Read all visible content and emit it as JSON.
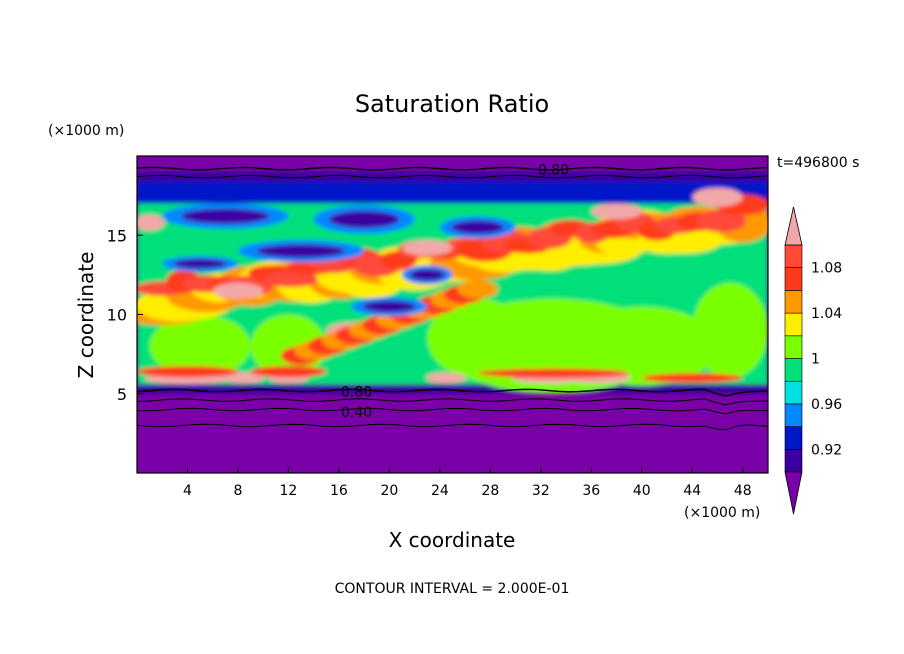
{
  "chart_data": {
    "type": "heatmap",
    "title": "Saturation Ratio",
    "xlabel": "X coordinate",
    "ylabel": "Z coordinate",
    "x_unit": "(×1000 m)",
    "y_unit": "(×1000 m)",
    "time_label": "t=496800 s",
    "footer": "CONTOUR INTERVAL = 2.000E-01",
    "xlim": [
      0,
      50
    ],
    "ylim": [
      0,
      20
    ],
    "x_ticks": [
      4,
      8,
      12,
      16,
      20,
      24,
      28,
      32,
      36,
      40,
      44,
      48
    ],
    "y_ticks": [
      5,
      10,
      15
    ],
    "colorbar": {
      "levels": [
        0.9,
        0.92,
        0.94,
        0.96,
        0.98,
        1.0,
        1.02,
        1.04,
        1.06,
        1.08,
        1.1
      ],
      "tick_labels": [
        "0.92",
        "0.96",
        "1",
        "1.04",
        "1.08"
      ],
      "tick_values": [
        0.92,
        0.96,
        1.0,
        1.04,
        1.08
      ],
      "colors": [
        "#7a00a8",
        "#3a00a0",
        "#0018c8",
        "#0088ff",
        "#00e0e0",
        "#00e07a",
        "#7aff00",
        "#ffee00",
        "#ff9900",
        "#ff3a1a",
        "#ff4a3a",
        "#f2a8a8"
      ],
      "extend": "both"
    },
    "contour_labels": [
      {
        "text": "0.80",
        "x": 17.4,
        "z": 5.2
      },
      {
        "text": "0.40",
        "x": 17.4,
        "z": 3.9
      },
      {
        "text": "0.80",
        "x": 33.0,
        "z": 19.2
      }
    ],
    "contour_lines": [
      {
        "level": 0.8,
        "z": 5.2
      },
      {
        "level": 0.6,
        "z": 4.6
      },
      {
        "level": 0.4,
        "z": 4.0
      },
      {
        "level": 0.2,
        "z": 3.0
      },
      {
        "level": 0.8,
        "z": 19.2
      },
      {
        "level": 0.6,
        "z": 18.7
      }
    ],
    "features": [
      {
        "region": "upper layer z 17-19",
        "value_range": "0.90-0.92"
      },
      {
        "region": "mid layer z 6-17",
        "value_range": "0.96-1.10"
      },
      {
        "region": "low cloud bands z 5.6-6.4 near x 0-14, 24, 30-36",
        "value_range": ">1.10"
      },
      {
        "region": "lower layer z 0-5",
        "value_range": "<0.90"
      }
    ]
  }
}
